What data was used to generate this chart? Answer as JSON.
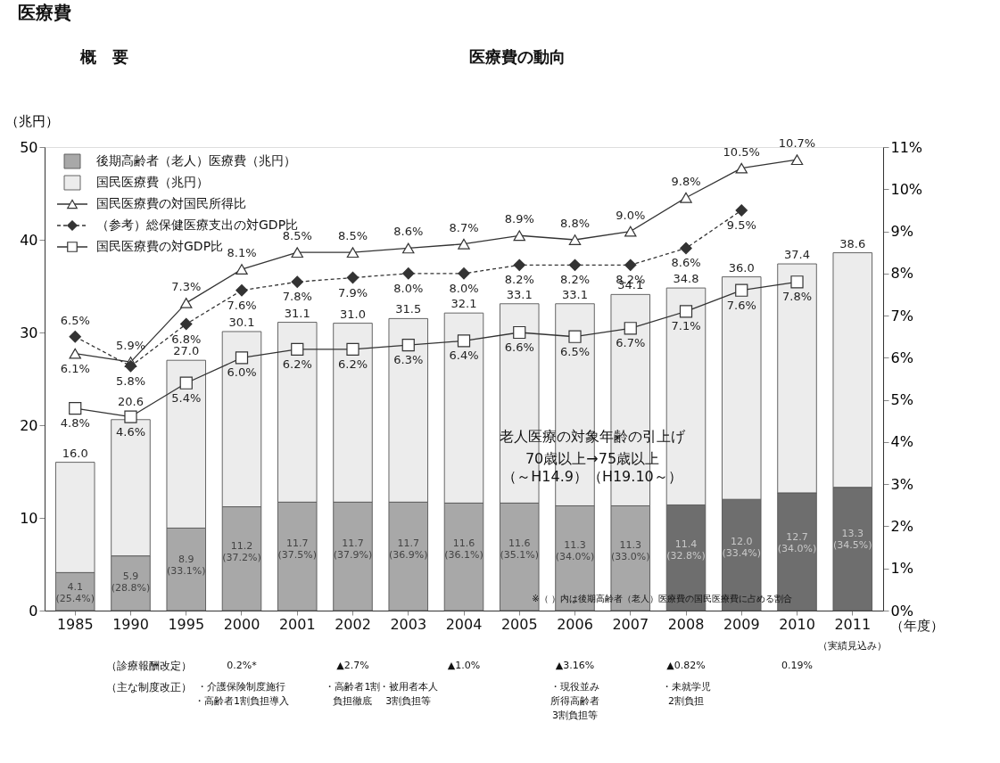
{
  "chart_data": {
    "type": "bar",
    "stacked": true,
    "legend": "top left",
    "title": "医療費の動向",
    "ylabel": "（兆円）",
    "xlabel": "（年度）",
    "grid": false,
    "categories": [
      "1985",
      "1990",
      "1995",
      "2000",
      "2001",
      "2002",
      "2003",
      "2004",
      "2005",
      "2006",
      "2007",
      "2008",
      "2009",
      "2010",
      "2011"
    ],
    "ylim": [
      0,
      50
    ],
    "yticks": [
      0,
      10,
      20,
      30,
      40,
      50
    ],
    "y2lim": [
      0,
      11
    ],
    "y2ticks": [
      {
        "value": 0,
        "label": "0%"
      },
      {
        "value": 1,
        "label": "1%"
      },
      {
        "value": 2,
        "label": "2%"
      },
      {
        "value": 3,
        "label": "3%"
      },
      {
        "value": 4,
        "label": "4%"
      },
      {
        "value": 5,
        "label": "5%"
      },
      {
        "value": 6,
        "label": "6%"
      },
      {
        "value": 7,
        "label": "7%"
      },
      {
        "value": 8,
        "label": "8%"
      },
      {
        "value": 9,
        "label": "9%"
      },
      {
        "value": 10,
        "label": "10%"
      },
      {
        "value": 11,
        "label": "11%"
      }
    ],
    "series": [
      {
        "name": "後期高齢者（老人）医療費（兆円）",
        "colors": [
          "#a8a8a8",
          "#a8a8a8",
          "#a8a8a8",
          "#a8a8a8",
          "#a8a8a8",
          "#a8a8a8",
          "#a8a8a8",
          "#a8a8a8",
          "#a8a8a8",
          "#a8a8a8",
          "#a8a8a8",
          "#6e6e6e",
          "#6e6e6e",
          "#6e6e6e",
          "#6e6e6e"
        ],
        "values": [
          4.1,
          5.9,
          8.9,
          11.2,
          11.7,
          11.7,
          11.7,
          11.6,
          11.6,
          11.3,
          11.3,
          11.4,
          12.0,
          12.7,
          13.3
        ],
        "value_labels": [
          "4.1\n(25.4%)",
          "5.9\n(28.8%)",
          "8.9\n(33.1%)",
          "11.2\n(37.2%)",
          "11.7\n(37.5%)",
          "11.7\n(37.9%)",
          "11.7\n(36.9%)",
          "11.6\n(36.1%)",
          "11.6\n(35.1%)",
          "11.3\n(34.0%)",
          "11.3\n(33.0%)",
          "11.4\n(32.8%)",
          "12.0\n(33.4%)",
          "12.7\n(34.0%)",
          "13.3\n(34.5%)"
        ]
      },
      {
        "name": "国民医療費（兆円）",
        "color": "#ececec",
        "values": [
          11.9,
          14.7,
          18.1,
          18.9,
          19.4,
          19.3,
          19.8,
          20.5,
          21.5,
          21.8,
          22.8,
          23.4,
          24.0,
          24.7,
          25.3
        ]
      },
      {
        "name": "国民医療費の対国民所得比",
        "type": "line",
        "axis": "y2",
        "color": "#333333",
        "marker": "triangle",
        "line_style": "solid",
        "values": [
          6.1,
          5.9,
          7.3,
          8.1,
          8.5,
          8.5,
          8.6,
          8.7,
          8.9,
          8.8,
          9.0,
          9.8,
          10.5,
          10.7,
          null
        ],
        "value_labels": [
          "6.1%",
          "5.9%",
          "7.3%",
          "8.1%",
          "8.5%",
          "8.5%",
          "8.6%",
          "8.7%",
          "8.9%",
          "8.8%",
          "9.0%",
          "9.8%",
          "10.5%",
          "10.7%",
          null
        ]
      },
      {
        "name": "（参考）総保健医療支出の対GDP比",
        "type": "line",
        "axis": "y2",
        "color": "#333333",
        "marker": "diamond",
        "line_style": "dashed",
        "values": [
          6.5,
          5.8,
          6.8,
          7.6,
          7.8,
          7.9,
          8.0,
          8.0,
          8.2,
          8.2,
          8.2,
          8.6,
          9.5,
          null,
          null
        ],
        "value_labels": [
          "6.5%",
          "5.8%",
          "6.8%",
          "7.6%",
          "7.8%",
          "7.9%",
          "8.0%",
          "8.0%",
          "8.2%",
          "8.2%",
          "8.2%",
          "8.6%",
          "9.5%",
          null,
          null
        ]
      },
      {
        "name": "国民医療費の対GDP比",
        "type": "line",
        "axis": "y2",
        "color": "#333333",
        "marker": "square",
        "line_style": "solid",
        "values": [
          4.8,
          4.6,
          5.4,
          6.0,
          6.2,
          6.2,
          6.3,
          6.4,
          6.6,
          6.5,
          6.7,
          7.1,
          7.6,
          7.8,
          null
        ],
        "value_labels": [
          "4.8%",
          "4.6%",
          "5.4%",
          "6.0%",
          "6.2%",
          "6.2%",
          "6.3%",
          "6.4%",
          "6.6%",
          "6.5%",
          "6.7%",
          "7.1%",
          "7.6%",
          "7.8%",
          null
        ]
      }
    ],
    "totals": [
      "16.0",
      "20.6",
      "27.0",
      "30.1",
      "31.1",
      "31.0",
      "31.5",
      "32.1",
      "33.1",
      "33.1",
      "34.1",
      "34.8",
      "36.0",
      "37.4",
      "38.6"
    ],
    "annotations": [
      "医療費",
      "概　要",
      "老人医療の対象年齢の引上げ",
      "70歳以上→75歳以上",
      "（～H14.9）（H19.10～）",
      "※（ ）内は後期高齢者（老人）医療費の国民医療費に占める割合",
      "（診療報酬改定）",
      "（主な制度改正）",
      "0.2%*",
      "▲2.7%",
      "▲1.0%",
      "▲3.16%",
      "▲0.82%",
      "0.19%",
      "・介護保険制度施行",
      "・高齢者1割負担導入",
      "・高齢者1割",
      "負担徹底",
      "・被用者本人",
      "3割負担等",
      "・現役並み",
      "所得高齢者",
      "3割負担等",
      "・未就学児",
      "2割負担",
      "（実績見込み）"
    ]
  }
}
